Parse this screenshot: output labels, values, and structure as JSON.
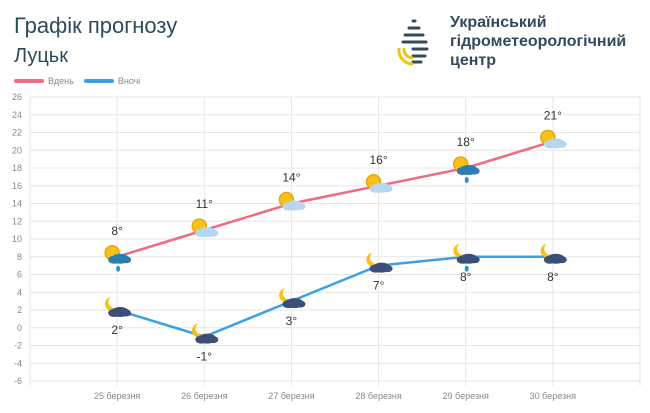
{
  "header": {
    "title": "Графік прогнозу",
    "city": "Луцьк",
    "org_name": [
      "Український",
      "гідрометеорологічний",
      "центр"
    ]
  },
  "chart_data": {
    "type": "line",
    "categories": [
      "25 березня",
      "26 березня",
      "27 березня",
      "28 березня",
      "29 березня",
      "30 березня"
    ],
    "ylim": [
      -6,
      26
    ],
    "yticks": [
      26,
      24,
      22,
      20,
      18,
      16,
      14,
      12,
      10,
      8,
      6,
      4,
      2,
      0,
      -2,
      -4,
      -6
    ],
    "grid": true,
    "legend_position": "top-left",
    "series": [
      {
        "name": "Вдень",
        "color": "#ef6b86",
        "values": [
          8,
          11,
          14,
          16,
          18,
          21
        ],
        "labels": [
          "8°",
          "11°",
          "14°",
          "16°",
          "18°",
          "21°"
        ],
        "icons": [
          "sun-rain-cloud",
          "sun-cloud",
          "sun-cloud",
          "sun-cloud",
          "sun-rain-cloud",
          "sun-cloud"
        ]
      },
      {
        "name": "Вночі",
        "color": "#3ea0e4",
        "values": [
          2,
          -1,
          3,
          7,
          8,
          8
        ],
        "labels": [
          "2°",
          "-1°",
          "3°",
          "7°",
          "8°",
          "8°"
        ],
        "icons": [
          "moon-cloud",
          "moon-cloud",
          "moon-cloud",
          "moon-cloud",
          "moon-rain-cloud",
          "moon-cloud"
        ]
      }
    ]
  }
}
